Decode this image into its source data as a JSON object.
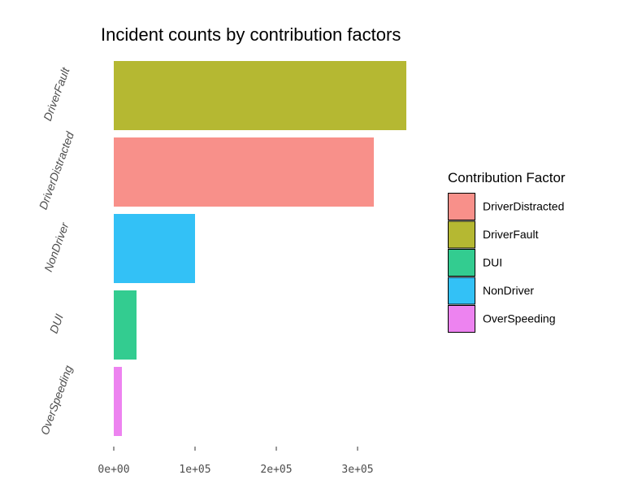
{
  "chart_data": {
    "type": "bar",
    "orientation": "horizontal",
    "title": "Incident counts by contribution factors",
    "xlabel": "",
    "ylabel": "",
    "categories": [
      "DriverFault",
      "DriverDistracted",
      "NonDriver",
      "DUI",
      "OverSpeeding"
    ],
    "values": [
      360000,
      320000,
      100000,
      28000,
      10000
    ],
    "colors": [
      "#B5B832",
      "#F8908A",
      "#33C1F6",
      "#33CC90",
      "#ED83F0"
    ],
    "xlim": [
      0,
      360000
    ],
    "x_ticks": [
      {
        "value": 0,
        "label": "0e+00"
      },
      {
        "value": 100000,
        "label": "1e+05"
      },
      {
        "value": 200000,
        "label": "2e+05"
      },
      {
        "value": 300000,
        "label": "3e+05"
      }
    ],
    "grid": false,
    "legend": {
      "title": "Contribution Factor",
      "placement": "right",
      "items": [
        {
          "label": "DriverDistracted",
          "color": "#F8908A"
        },
        {
          "label": "DriverFault",
          "color": "#B5B832"
        },
        {
          "label": "DUI",
          "color": "#33CC90"
        },
        {
          "label": "NonDriver",
          "color": "#33C1F6"
        },
        {
          "label": "OverSpeeding",
          "color": "#ED83F0"
        }
      ]
    }
  }
}
